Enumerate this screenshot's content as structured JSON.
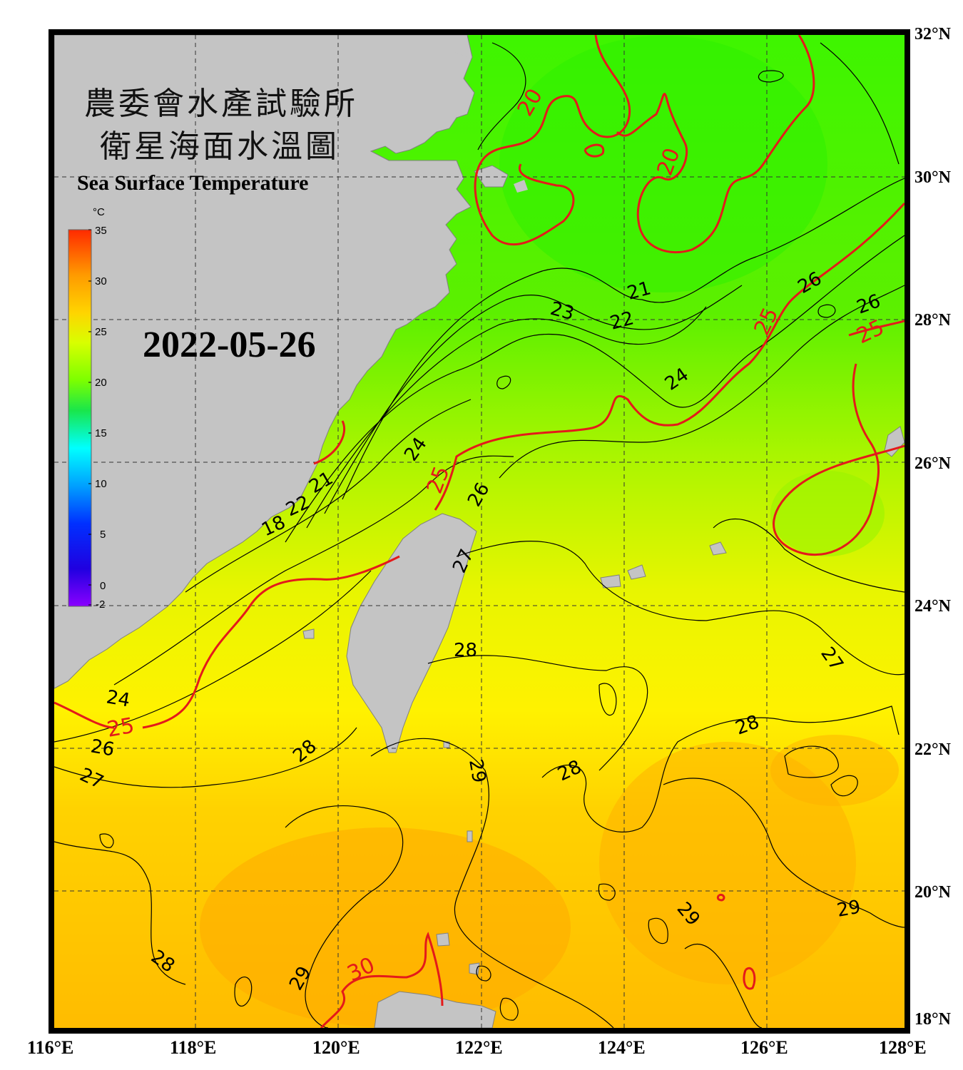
{
  "title": {
    "line1": "農委會水產試驗所",
    "line2": "衛星海面水溫圖",
    "english": "Sea Surface Temperature"
  },
  "date": "2022-05-26",
  "colorbar": {
    "unit": "°C",
    "ticks": [
      "35",
      "30",
      "25",
      "20",
      "15",
      "10",
      "5",
      "0",
      "-2"
    ],
    "stops": [
      "#ff2a00",
      "#ff9a00",
      "#ffd400",
      "#d8ff00",
      "#7cff00",
      "#19e64b",
      "#00ffff",
      "#00a0ff",
      "#0030ff",
      "#2000e0",
      "#8a00ff"
    ]
  },
  "axes": {
    "lat_labels": [
      "32°N",
      "30°N",
      "28°N",
      "26°N",
      "24°N",
      "22°N",
      "20°N",
      "18°N"
    ],
    "lon_labels": [
      "116°E",
      "118°E",
      "120°E",
      "122°E",
      "124°E",
      "126°E",
      "128°E"
    ]
  },
  "contour_labels": {
    "black": [
      "21",
      "22",
      "23",
      "24",
      "26",
      "26",
      "26",
      "24",
      "21",
      "22",
      "18",
      "27",
      "28",
      "28",
      "28",
      "28",
      "29",
      "29",
      "29",
      "29",
      "28",
      "24",
      "26",
      "27",
      "27"
    ],
    "red": [
      "20",
      "20",
      "25",
      "25",
      "25",
      "25",
      "30"
    ]
  },
  "colors": {
    "land": "#c4c4c4",
    "frame": "#000000",
    "contour_red": "#e41a1a"
  }
}
